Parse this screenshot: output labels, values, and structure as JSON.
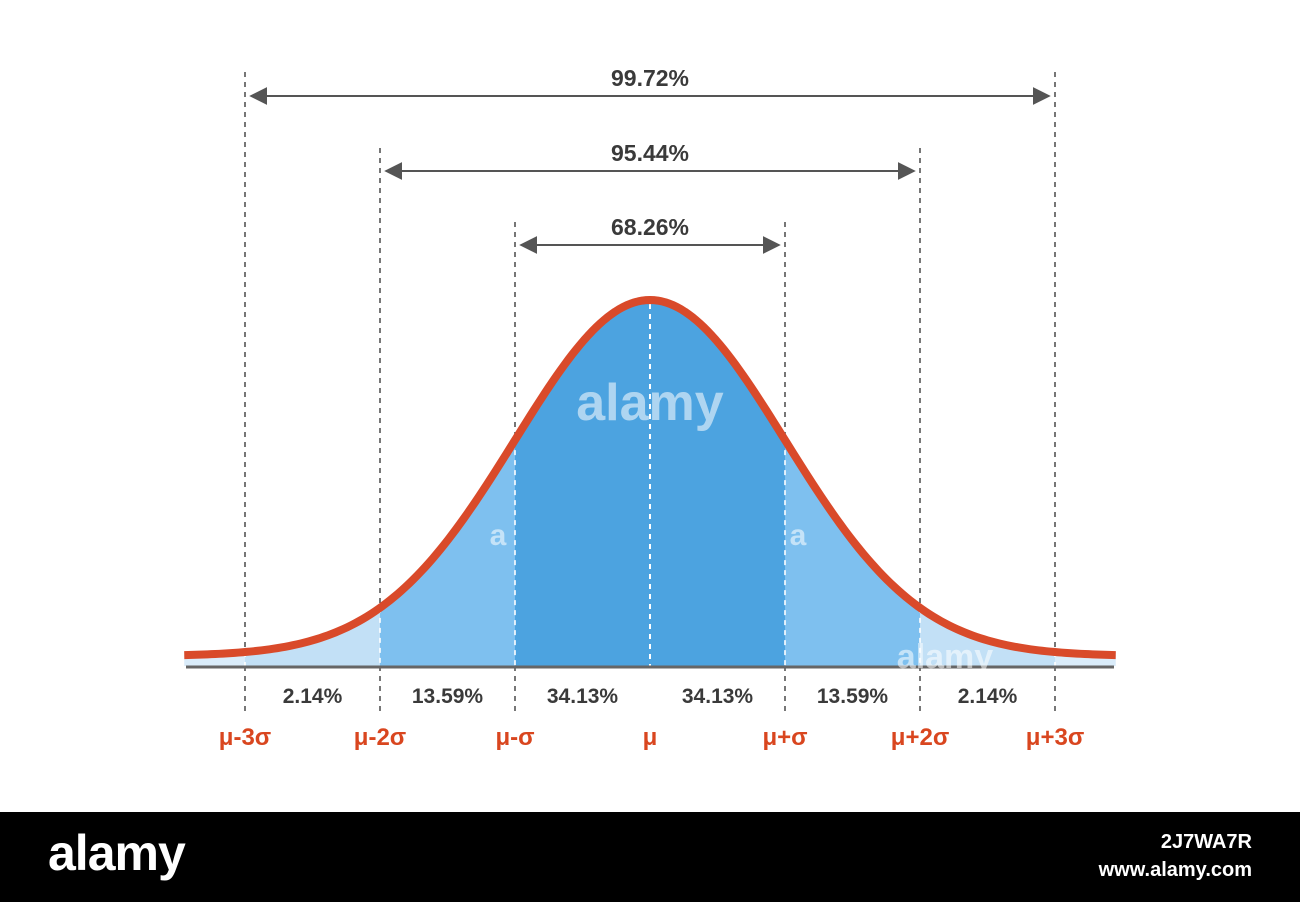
{
  "chart_data": {
    "type": "area",
    "title": "",
    "xlabel": "",
    "ylabel": "",
    "distribution": "normal",
    "xlim": [
      -3.45,
      3.45
    ],
    "ticks": [
      {
        "x": -3,
        "label": "μ-3σ"
      },
      {
        "x": -2,
        "label": "μ-2σ"
      },
      {
        "x": -1,
        "label": "μ-σ"
      },
      {
        "x": 0,
        "label": "μ"
      },
      {
        "x": 1,
        "label": "μ+σ"
      },
      {
        "x": 2,
        "label": "μ+2σ"
      },
      {
        "x": 3,
        "label": "μ+3σ"
      }
    ],
    "segments": [
      {
        "from": -3,
        "to": -2,
        "value": 2.14,
        "label": "2.14%"
      },
      {
        "from": -2,
        "to": -1,
        "value": 13.59,
        "label": "13.59%"
      },
      {
        "from": -1,
        "to": 0,
        "value": 34.13,
        "label": "34.13%"
      },
      {
        "from": 0,
        "to": 1,
        "value": 34.13,
        "label": "34.13%"
      },
      {
        "from": 1,
        "to": 2,
        "value": 13.59,
        "label": "13.59%"
      },
      {
        "from": 2,
        "to": 3,
        "value": 2.14,
        "label": "2.14%"
      }
    ],
    "ranges": [
      {
        "from": -1,
        "to": 1,
        "value": 68.26,
        "label": "68.26%"
      },
      {
        "from": -2,
        "to": 2,
        "value": 95.44,
        "label": "95.44%"
      },
      {
        "from": -3,
        "to": 3,
        "value": 99.72,
        "label": "99.72%"
      }
    ],
    "colors": {
      "curve": "#d94a2a",
      "fill_inner": "#4ca3e0",
      "fill_middle": "#7ec0ef",
      "fill_outer": "#c2e0f6",
      "tick_label": "#d9461f",
      "axis": "#666666",
      "guide": "#555555"
    }
  },
  "watermark": {
    "center": "alamy",
    "left_fragment": "a",
    "right_fragment": "a",
    "bottom_right": "alamy"
  },
  "footer": {
    "brand": "alamy",
    "image_id": "2J7WA7R",
    "url": "www.alamy.com"
  }
}
